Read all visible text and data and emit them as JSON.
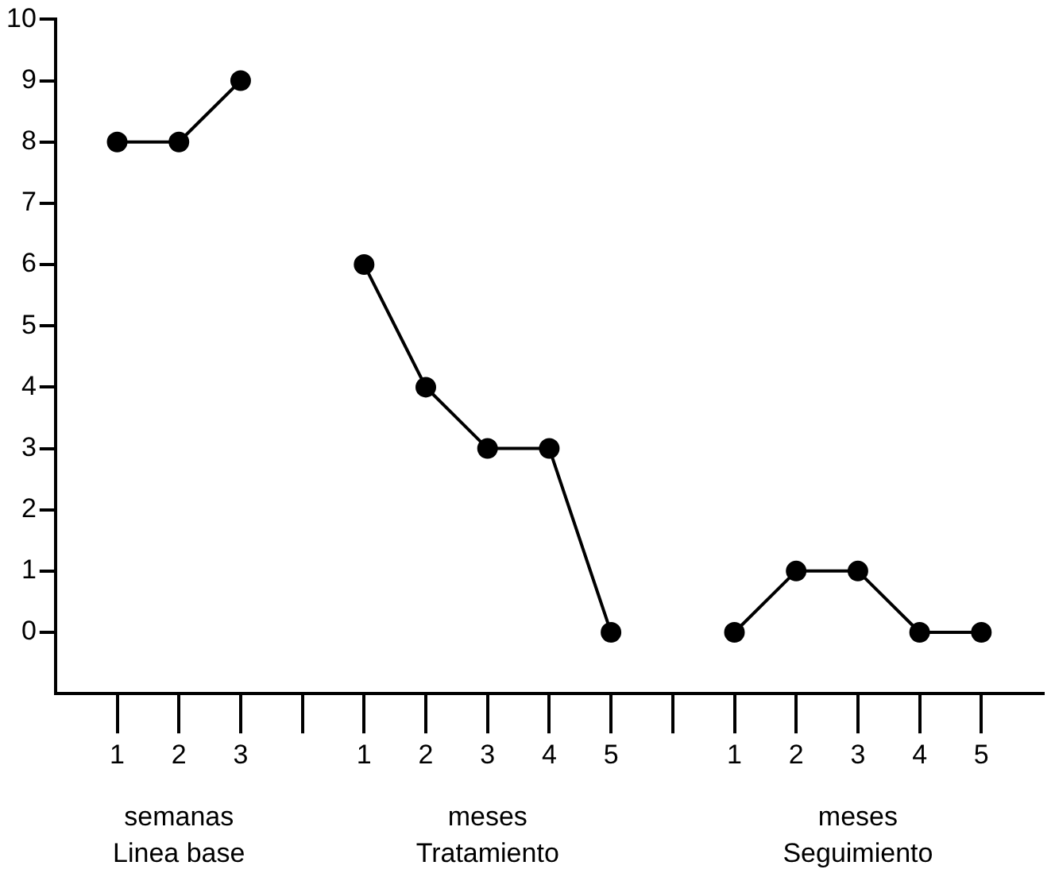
{
  "chart_data": {
    "type": "line",
    "categories": [
      "1",
      "2",
      "3",
      null,
      "1",
      "2",
      "3",
      "4",
      "5",
      null,
      "1",
      "2",
      "3",
      "4",
      "5"
    ],
    "series": [
      {
        "color": "#000000",
        "values": [
          8,
          8,
          9,
          null,
          null,
          null,
          null,
          null,
          null,
          null,
          null,
          null,
          null,
          null,
          null
        ]
      },
      {
        "color": "#000000",
        "values": [
          null,
          null,
          null,
          null,
          6,
          4,
          3,
          3,
          0,
          null,
          null,
          null,
          null,
          null,
          null
        ]
      },
      {
        "color": "#000000",
        "values": [
          null,
          null,
          null,
          null,
          null,
          null,
          null,
          null,
          null,
          null,
          0,
          1,
          1,
          0,
          0
        ]
      }
    ],
    "ylim": [
      -1,
      10
    ],
    "yticks": [
      0,
      1,
      2,
      3,
      4,
      5,
      6,
      7,
      8,
      9,
      10
    ],
    "marker": "circle",
    "line_style": "solid",
    "grid": false,
    "legend": false,
    "annotations": [
      "semanas\nLinea base",
      "meses\nTratamiento",
      "meses\nSeguimiento"
    ]
  }
}
